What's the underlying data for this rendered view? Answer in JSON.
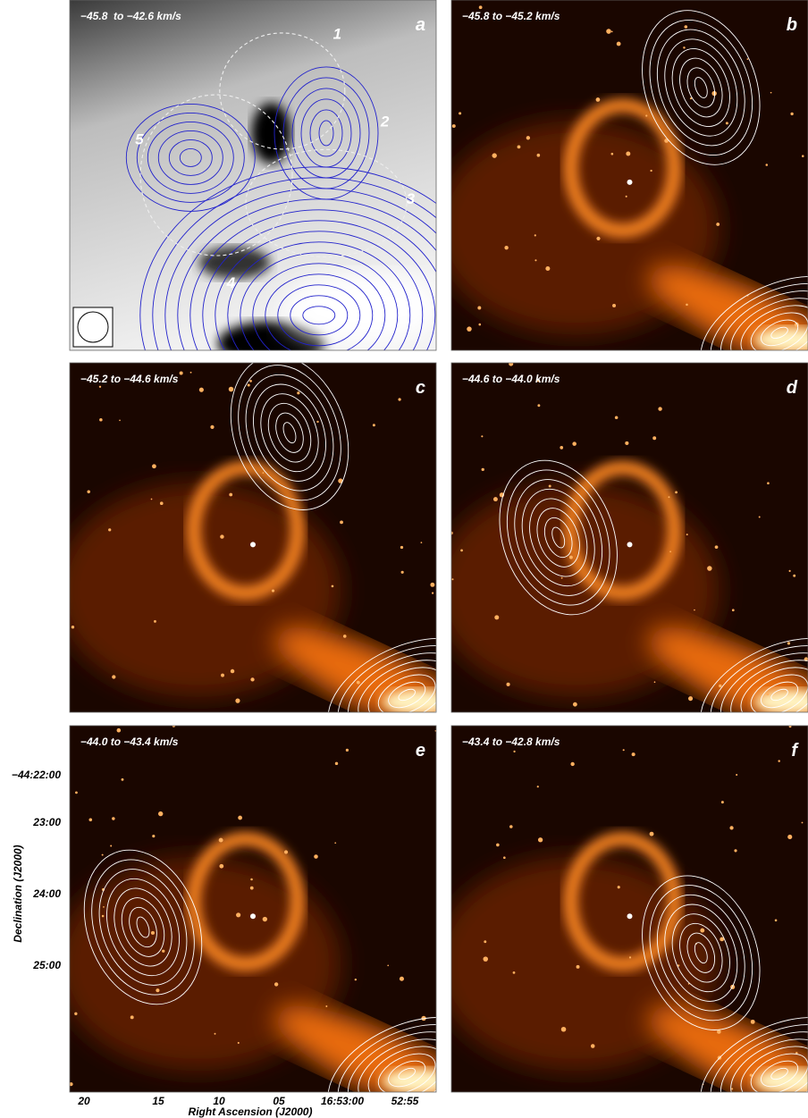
{
  "panels": [
    {
      "letter": "a",
      "velocity": "−45.8  to −42.6 km/s",
      "regions": [
        "1",
        "2",
        "3",
        "4",
        "5"
      ]
    },
    {
      "letter": "b",
      "velocity": "−45.8 to −45.2 km/s"
    },
    {
      "letter": "c",
      "velocity": "−45.2 to −44.6 km/s"
    },
    {
      "letter": "d",
      "velocity": "−44.6 to −44.0 km/s"
    },
    {
      "letter": "e",
      "velocity": "−44.0 to −43.4 km/s"
    },
    {
      "letter": "f",
      "velocity": "−43.4 to −42.8 km/s"
    }
  ],
  "axes": {
    "x_title": "Right Ascension (J2000)",
    "x_ticks": [
      "20",
      "15",
      "10",
      "05",
      "16:53:00",
      "52:55"
    ],
    "y_title": "Declination (J2000)",
    "y_ticks": [
      "−44:22:00",
      "23:00",
      "24:00",
      "25:00"
    ]
  }
}
